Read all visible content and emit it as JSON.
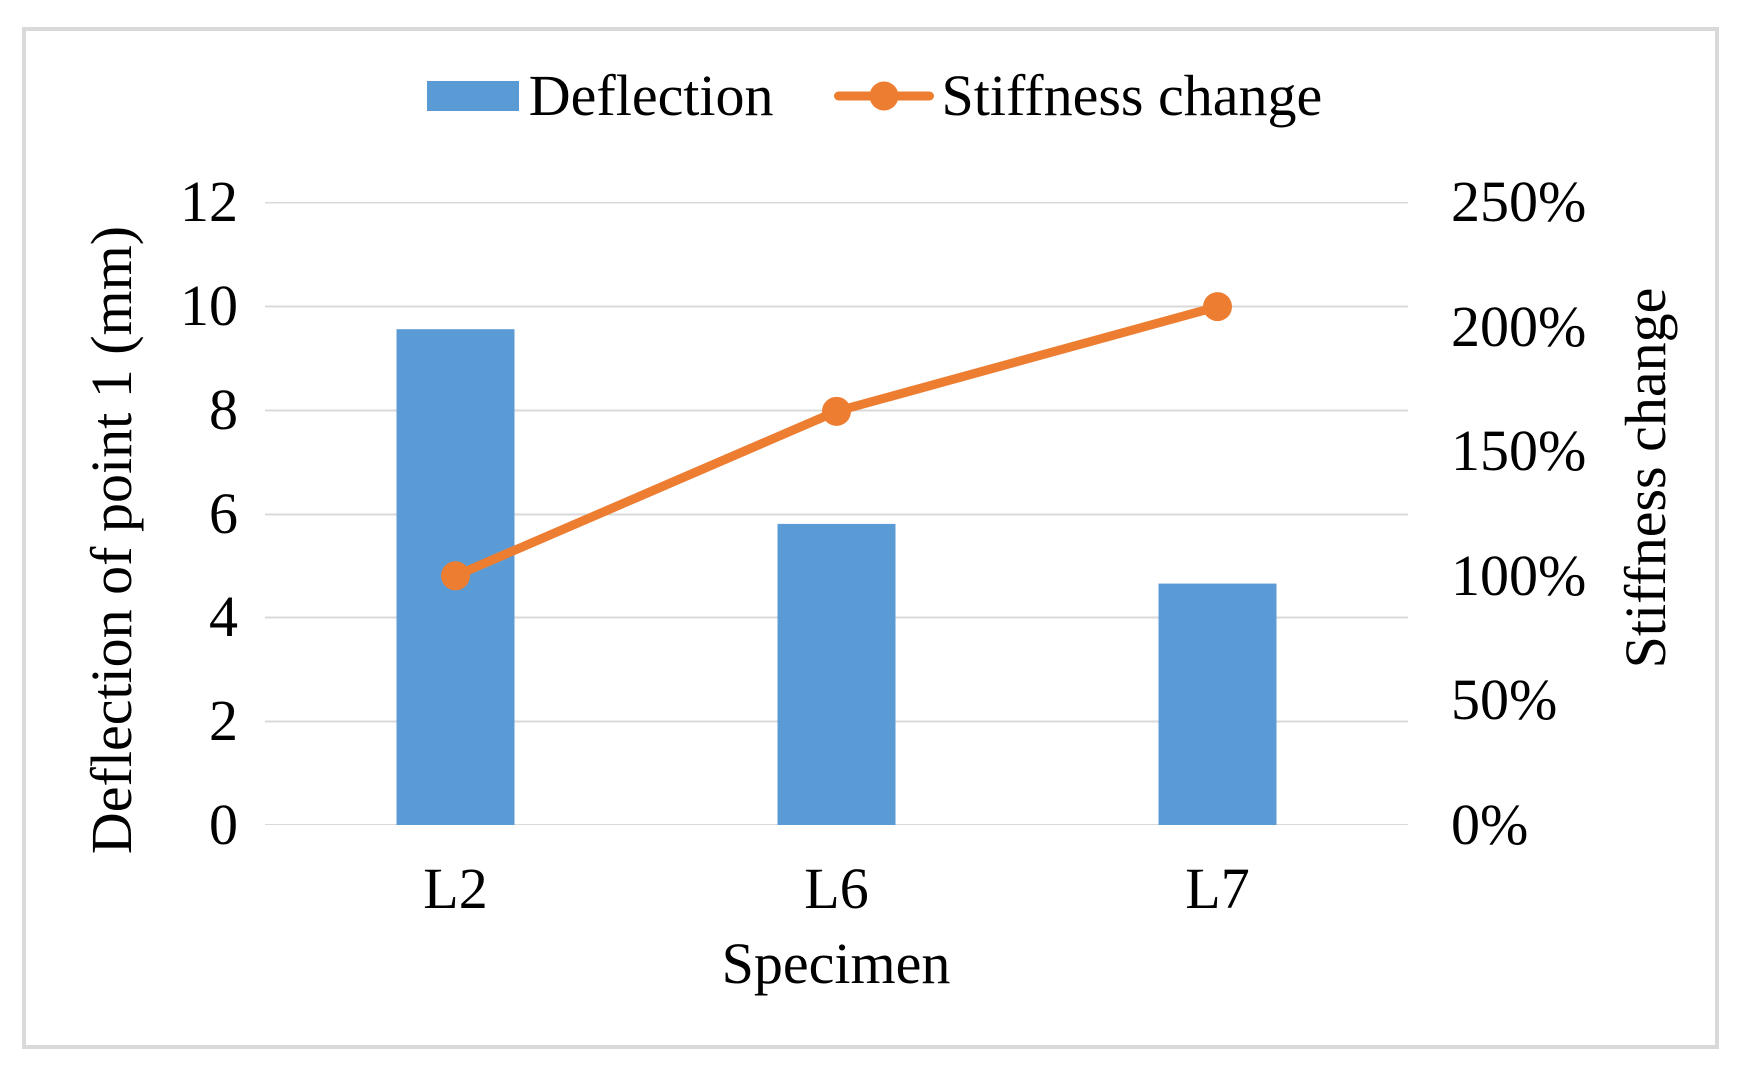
{
  "figure": {
    "background_color": "#ffffff",
    "border_color": "#d9d9d9"
  },
  "chart_data": {
    "type": "combo",
    "categories": [
      "L2",
      "L6",
      "L7"
    ],
    "series": [
      {
        "name": "Deflection",
        "type": "bar",
        "axis": "left",
        "color": "#5B9BD5",
        "values": [
          9.55,
          5.8,
          4.65
        ]
      },
      {
        "name": "Stiffness change",
        "type": "line",
        "axis": "right",
        "color": "#ED7D31",
        "values_percent": [
          100,
          166,
          208
        ]
      }
    ],
    "left_axis": {
      "title": "Deflection of point 1 (mm)",
      "min": 0,
      "max": 12,
      "tick_step": 2,
      "ticks": [
        "0",
        "2",
        "4",
        "6",
        "8",
        "10",
        "12"
      ]
    },
    "right_axis": {
      "title": "Stiffness change",
      "min_percent": 0,
      "max_percent": 250,
      "ticks": [
        "0%",
        "50%",
        "100%",
        "150%",
        "200%",
        "250%"
      ]
    },
    "x_axis": {
      "title": "Specimen"
    },
    "grid": true,
    "gridline_color": "#d9d9d9",
    "legend_position": "top"
  }
}
